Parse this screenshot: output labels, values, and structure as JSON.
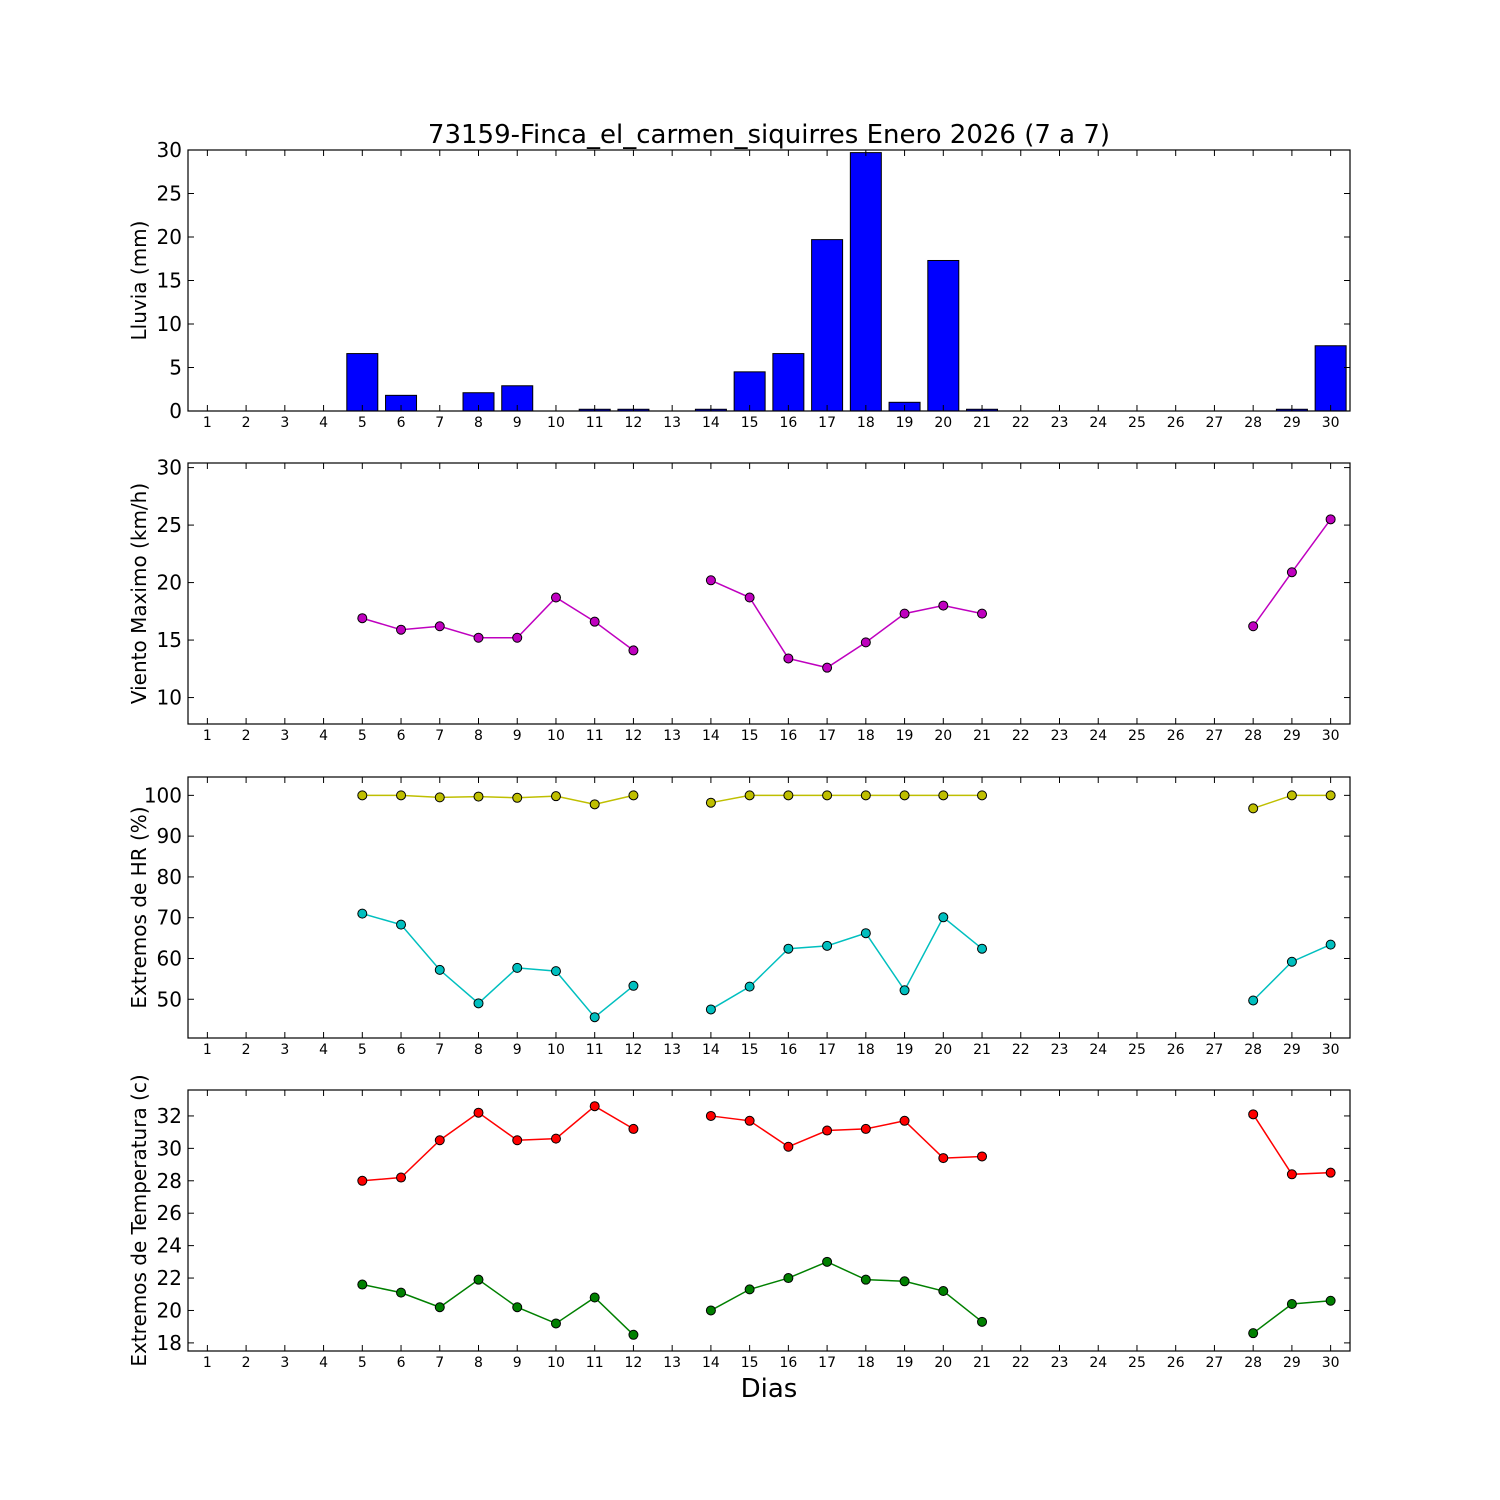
{
  "chart_data": {
    "title": "73159-Finca_el_carmen_siquirres Enero 2026  (7 a 7)",
    "xlabel": "Dias",
    "x": [
      1,
      2,
      3,
      4,
      5,
      6,
      7,
      8,
      9,
      10,
      11,
      12,
      13,
      14,
      15,
      16,
      17,
      18,
      19,
      20,
      21,
      22,
      23,
      24,
      25,
      26,
      27,
      28,
      29,
      30
    ],
    "panels": [
      {
        "type": "bar",
        "ylabel": "Lluvia (mm)",
        "ylim": [
          0,
          30
        ],
        "yticks": [
          0,
          5,
          10,
          15,
          20,
          25,
          30
        ],
        "series": [
          {
            "color": "#0000ff",
            "values": [
              0,
              0,
              0,
              0,
              6.6,
              1.8,
              0,
              2.1,
              2.9,
              0,
              0.2,
              0.2,
              0,
              0.2,
              4.5,
              6.6,
              19.7,
              29.7,
              1.0,
              17.3,
              0.2,
              0,
              0,
              0,
              0,
              0,
              0,
              0,
              0.2,
              7.5
            ]
          }
        ]
      },
      {
        "type": "line",
        "ylabel": "Viento Maximo (km/h)",
        "ylim": [
          7.7,
          30.4
        ],
        "yticks": [
          10,
          15,
          20,
          25,
          30
        ],
        "series": [
          {
            "color": "#bf00bf",
            "values": [
              null,
              null,
              null,
              null,
              16.9,
              15.9,
              16.2,
              15.2,
              15.2,
              18.7,
              16.6,
              14.1,
              null,
              20.2,
              18.7,
              13.4,
              12.6,
              14.8,
              17.3,
              18.0,
              17.3,
              null,
              null,
              null,
              null,
              null,
              null,
              16.2,
              20.9,
              25.5
            ]
          }
        ]
      },
      {
        "type": "line",
        "ylabel": "Extremos de HR (%)",
        "ylim": [
          40.5,
          104.5
        ],
        "yticks": [
          50,
          60,
          70,
          80,
          90,
          100
        ],
        "series": [
          {
            "color": "#bfbf00",
            "values": [
              null,
              null,
              null,
              null,
              100,
              100,
              99.5,
              99.7,
              99.4,
              99.8,
              97.8,
              100,
              null,
              98.2,
              100,
              100,
              100,
              100,
              100,
              100,
              100,
              null,
              null,
              null,
              null,
              null,
              null,
              96.8,
              100,
              100
            ]
          },
          {
            "color": "#00bfbf",
            "values": [
              null,
              null,
              null,
              null,
              71.0,
              68.3,
              57.2,
              49.0,
              57.7,
              56.9,
              45.6,
              53.3,
              null,
              47.5,
              53.1,
              62.4,
              63.1,
              66.2,
              52.2,
              70.1,
              62.4,
              null,
              null,
              null,
              null,
              null,
              null,
              49.7,
              59.2,
              63.4
            ]
          }
        ]
      },
      {
        "type": "line",
        "ylabel": "Extremos de Temperatura (c)",
        "ylim": [
          17.5,
          33.6
        ],
        "yticks": [
          18,
          20,
          22,
          24,
          26,
          28,
          30,
          32
        ],
        "series": [
          {
            "color": "#ff0000",
            "values": [
              null,
              null,
              null,
              null,
              28.0,
              28.2,
              30.5,
              32.2,
              30.5,
              30.6,
              32.6,
              31.2,
              null,
              32.0,
              31.7,
              30.1,
              31.1,
              31.2,
              31.7,
              29.4,
              29.5,
              null,
              null,
              null,
              null,
              null,
              null,
              32.1,
              28.4,
              28.5
            ]
          },
          {
            "color": "#008000",
            "values": [
              null,
              null,
              null,
              null,
              21.6,
              21.1,
              20.2,
              21.9,
              20.2,
              19.2,
              20.8,
              18.5,
              null,
              20.0,
              21.3,
              22.0,
              23.0,
              21.9,
              21.8,
              21.2,
              19.3,
              null,
              null,
              null,
              null,
              null,
              null,
              18.6,
              20.4,
              20.6
            ]
          }
        ]
      }
    ]
  }
}
